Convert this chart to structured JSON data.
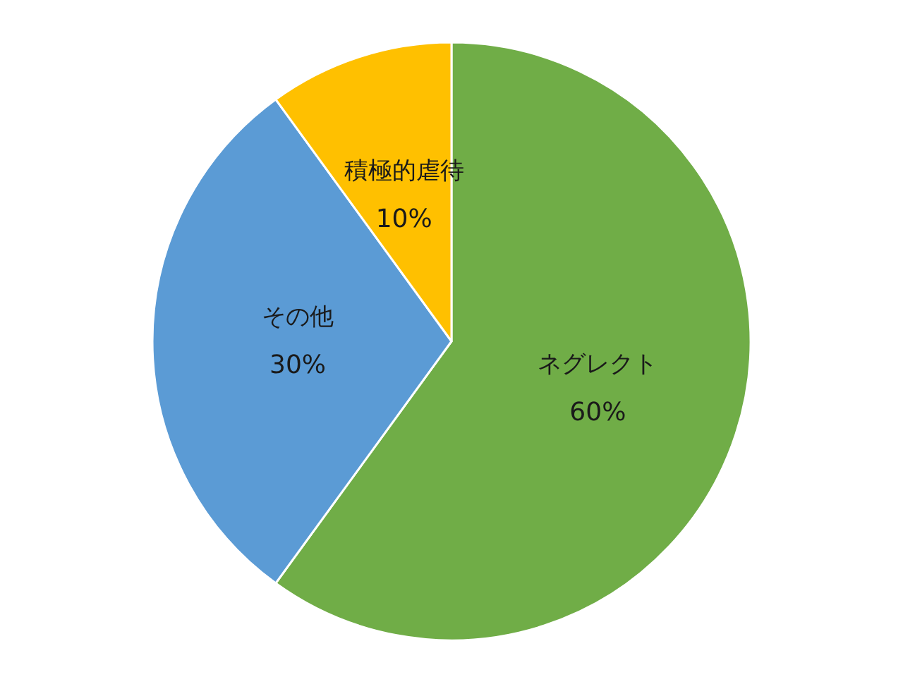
{
  "chart_data": {
    "type": "pie",
    "categories": [
      "ネグレクト",
      "その他",
      "積極的虐待"
    ],
    "values": [
      60,
      30,
      10
    ],
    "value_labels": [
      "60%",
      "30%",
      "10%"
    ],
    "colors": [
      "#70ad47",
      "#5b9bd5",
      "#ffc000"
    ],
    "legend": false
  }
}
